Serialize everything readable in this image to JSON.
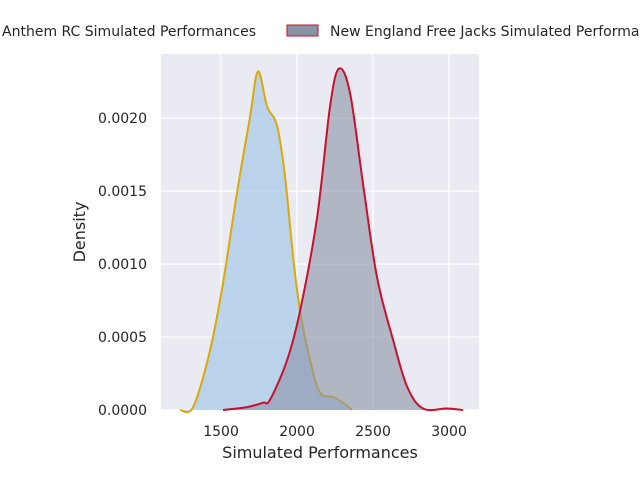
{
  "chart_data": {
    "type": "area",
    "subtype": "kde",
    "title": "",
    "xlabel": "Simulated Performances",
    "ylabel": "Density",
    "xlim": [
      1105,
      3197
    ],
    "ylim": [
      0,
      0.00244
    ],
    "xticks": [
      1500,
      2000,
      2500,
      3000
    ],
    "xtick_labels": [
      "1500",
      "2000",
      "2500",
      "3000"
    ],
    "yticks": [
      0,
      0.0005,
      0.001,
      0.0015,
      0.002
    ],
    "ytick_labels": [
      "0.0000",
      "0.0005",
      "0.0010",
      "0.0015",
      "0.0020"
    ],
    "grid": true,
    "background": "#eaeaf2",
    "legend_placement": "top, outside plot (clipped)",
    "series": [
      {
        "name": "Anthem RC Simulated Performances",
        "fill_color": "#a9cbe8",
        "line_color": "#d9a90a",
        "x": [
          1230,
          1316,
          1428,
          1513,
          1605,
          1691,
          1743,
          1803,
          1868,
          1921,
          1974,
          2020,
          2086,
          2151,
          2237,
          2303,
          2362
        ],
        "y": [
          0,
          2e-05,
          0.00041,
          0.00087,
          0.00149,
          0.00201,
          0.00232,
          0.00208,
          0.00195,
          0.0016,
          0.00105,
          0.00068,
          0.00034,
          0.00012,
          9e-05,
          5e-05,
          0
        ]
      },
      {
        "name": "New England Free Jacks Simulated Performances",
        "fill_color": "#8a93a6",
        "line_color": "#c8102e",
        "x": [
          1513,
          1671,
          1776,
          1822,
          1934,
          2020,
          2132,
          2217,
          2276,
          2349,
          2434,
          2526,
          2632,
          2724,
          2829,
          2987,
          3092
        ],
        "y": [
          0,
          2e-05,
          5e-05,
          7e-05,
          0.00034,
          0.00068,
          0.00132,
          0.00208,
          0.00234,
          0.00217,
          0.00155,
          0.00091,
          0.00048,
          0.00016,
          1e-05,
          1e-05,
          0
        ]
      }
    ]
  }
}
